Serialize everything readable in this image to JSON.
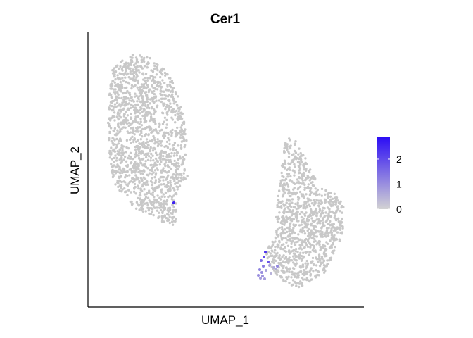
{
  "chart_data": {
    "type": "scatter",
    "title": "Cer1",
    "xlabel": "UMAP_1",
    "ylabel": "UMAP_2",
    "axis_ticks_shown": false,
    "grid": false,
    "legend": {
      "type": "colorbar",
      "placement": "right",
      "min": 0,
      "max": 2.9,
      "ticks": [
        0,
        1,
        2
      ],
      "tick_labels": [
        "0",
        "1",
        "2"
      ],
      "low_color": "#d3d3d3",
      "high_color": "#2b0cf5"
    },
    "colors": {
      "background_points": "#c8c8c8",
      "low": "#d3d3d3",
      "high": "#2b0cf5"
    },
    "clusters": [
      {
        "description": "left cluster",
        "n_points_approx": 1500,
        "expression": 0
      },
      {
        "description": "right cluster",
        "n_points_approx": 1100,
        "expression": 0
      }
    ],
    "expressing_points": [
      {
        "x": 0.0,
        "y": 0.0,
        "value": 2.6
      },
      {
        "x": 0.0,
        "y": 0.0,
        "value": 2.3
      },
      {
        "x": 0.0,
        "y": 0.0,
        "value": 2.0
      },
      {
        "x": 0.0,
        "y": 0.0,
        "value": 1.8
      },
      {
        "x": 0.0,
        "y": 0.0,
        "value": 1.5
      },
      {
        "x": 0.0,
        "y": 0.0,
        "value": 1.3
      },
      {
        "x": 0.0,
        "y": 0.0,
        "value": 1.2
      },
      {
        "x": 0.0,
        "y": 0.0,
        "value": 1.0
      },
      {
        "x": 0.0,
        "y": 0.0,
        "value": 1.0
      },
      {
        "x": 0.0,
        "y": 0.0,
        "value": 0.9
      },
      {
        "x": 0.0,
        "y": 0.0,
        "value": 0.8
      },
      {
        "x": 0.0,
        "y": 0.0,
        "value": 0.8
      },
      {
        "x": 0.0,
        "y": 0.0,
        "value": 0.7
      },
      {
        "x": 0.0,
        "y": 0.0,
        "value": 0.7
      },
      {
        "x": 0.0,
        "y": 0.0,
        "value": 0.6
      },
      {
        "x": 0.0,
        "y": 0.0,
        "value": 0.6
      },
      {
        "x": 0.0,
        "y": 0.0,
        "value": 0.5
      },
      {
        "x": 0.0,
        "y": 0.0,
        "value": 1.1
      }
    ]
  }
}
